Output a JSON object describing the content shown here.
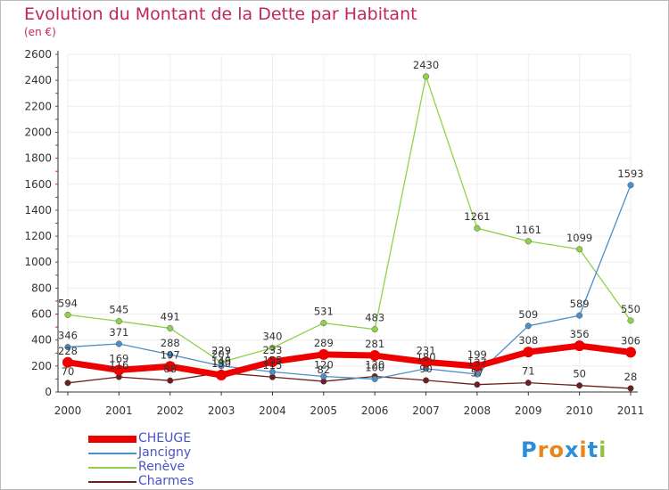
{
  "title": "Evolution du Montant de la Dette par Habitant",
  "subtitle": "(en €)",
  "logo": {
    "text": "Proxiti",
    "colors": [
      "#2a8fd8",
      "#e8851c",
      "#e8851c",
      "#2a8fd8",
      "#e8851c",
      "#2a8fd8",
      "#8bc43f"
    ]
  },
  "chart_data": {
    "type": "line",
    "x": [
      "2000",
      "2001",
      "2002",
      "2003",
      "2004",
      "2005",
      "2006",
      "2007",
      "2008",
      "2009",
      "2010",
      "2011"
    ],
    "ylim": [
      0,
      2600
    ],
    "yticks": [
      0,
      200,
      400,
      600,
      800,
      1000,
      1200,
      1400,
      1600,
      1800,
      2000,
      2200,
      2400,
      2600
    ],
    "grid": true,
    "legend_position": "bottom-left",
    "series": [
      {
        "name": "CHEUGE",
        "color": "#ee0000",
        "values": [
          228,
          169,
          197,
          130,
          233,
          289,
          281,
          231,
          199,
          308,
          356,
          306
        ]
      },
      {
        "name": "Jancigny",
        "color": "#4a8fc9",
        "values": [
          346,
          371,
          288,
          201,
          155,
          120,
          100,
          180,
          137,
          509,
          589,
          1593
        ]
      },
      {
        "name": "Renève",
        "color": "#8ed24a",
        "values": [
          594,
          545,
          491,
          229,
          340,
          531,
          483,
          2430,
          1261,
          1161,
          1099,
          550
        ]
      },
      {
        "name": "Charmes",
        "color": "#6b1f1f",
        "values": [
          70,
          116,
          88,
          149,
          115,
          82,
          120,
          90,
          57,
          71,
          50,
          28
        ]
      }
    ]
  }
}
